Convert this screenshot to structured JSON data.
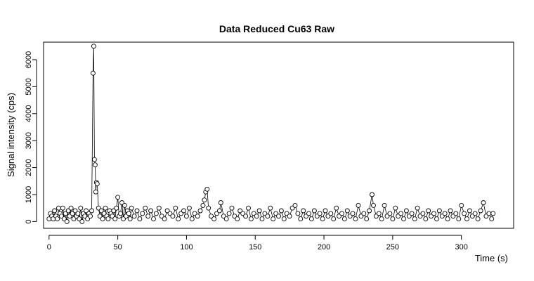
{
  "chart_data": {
    "type": "scatter",
    "title": "Data Reduced Cu63 Raw",
    "xlabel": "Time (s)",
    "ylabel": "Signal intensity (cps)",
    "xlim": [
      -4,
      338
    ],
    "ylim": [
      -250,
      6650
    ],
    "xticks": [
      0,
      50,
      100,
      150,
      200,
      250,
      300
    ],
    "yticks": [
      0,
      1000,
      2000,
      3000,
      4000,
      5000,
      6000
    ],
    "grid": false,
    "marker": "open-circle",
    "line": "connected",
    "points": [
      [
        0,
        100
      ],
      [
        1,
        300
      ],
      [
        2,
        200
      ],
      [
        3,
        100
      ],
      [
        4,
        400
      ],
      [
        5,
        200
      ],
      [
        6,
        100
      ],
      [
        7,
        500
      ],
      [
        8,
        300
      ],
      [
        9,
        200
      ],
      [
        10,
        500
      ],
      [
        11,
        100
      ],
      [
        12,
        300
      ],
      [
        13,
        0
      ],
      [
        14,
        400
      ],
      [
        15,
        200
      ],
      [
        16,
        500
      ],
      [
        17,
        300
      ],
      [
        18,
        100
      ],
      [
        19,
        400
      ],
      [
        20,
        200
      ],
      [
        21,
        300
      ],
      [
        22,
        100
      ],
      [
        23,
        500
      ],
      [
        24,
        0
      ],
      [
        25,
        300
      ],
      [
        26,
        200
      ],
      [
        27,
        400
      ],
      [
        28,
        100
      ],
      [
        29,
        300
      ],
      [
        30,
        200
      ],
      [
        31,
        400
      ],
      [
        32,
        5500
      ],
      [
        32.5,
        6500
      ],
      [
        33,
        2300
      ],
      [
        33.5,
        2100
      ],
      [
        34,
        1100
      ],
      [
        34.5,
        1450
      ],
      [
        35,
        1400
      ],
      [
        36,
        500
      ],
      [
        37,
        200
      ],
      [
        38,
        400
      ],
      [
        39,
        100
      ],
      [
        40,
        300
      ],
      [
        41,
        500
      ],
      [
        42,
        200
      ],
      [
        43,
        100
      ],
      [
        44,
        400
      ],
      [
        45,
        300
      ],
      [
        46,
        200
      ],
      [
        47,
        400
      ],
      [
        48,
        100
      ],
      [
        49,
        500
      ],
      [
        50,
        900
      ],
      [
        51,
        200
      ],
      [
        52,
        300
      ],
      [
        53,
        700
      ],
      [
        54,
        100
      ],
      [
        55,
        600
      ],
      [
        56,
        200
      ],
      [
        57,
        400
      ],
      [
        58,
        300
      ],
      [
        59,
        100
      ],
      [
        60,
        500
      ],
      [
        62,
        200
      ],
      [
        64,
        400
      ],
      [
        66,
        100
      ],
      [
        68,
        300
      ],
      [
        70,
        500
      ],
      [
        72,
        200
      ],
      [
        74,
        400
      ],
      [
        76,
        100
      ],
      [
        78,
        300
      ],
      [
        80,
        500
      ],
      [
        82,
        200
      ],
      [
        84,
        100
      ],
      [
        86,
        400
      ],
      [
        88,
        300
      ],
      [
        90,
        200
      ],
      [
        92,
        500
      ],
      [
        94,
        100
      ],
      [
        96,
        300
      ],
      [
        98,
        400
      ],
      [
        100,
        200
      ],
      [
        102,
        500
      ],
      [
        104,
        100
      ],
      [
        106,
        300
      ],
      [
        108,
        200
      ],
      [
        110,
        400
      ],
      [
        112,
        600
      ],
      [
        113,
        800
      ],
      [
        114,
        1100
      ],
      [
        115,
        1200
      ],
      [
        116,
        500
      ],
      [
        118,
        200
      ],
      [
        120,
        100
      ],
      [
        122,
        300
      ],
      [
        124,
        400
      ],
      [
        125,
        700
      ],
      [
        127,
        200
      ],
      [
        129,
        100
      ],
      [
        131,
        300
      ],
      [
        133,
        500
      ],
      [
        135,
        200
      ],
      [
        137,
        100
      ],
      [
        139,
        400
      ],
      [
        141,
        300
      ],
      [
        143,
        200
      ],
      [
        145,
        500
      ],
      [
        147,
        100
      ],
      [
        149,
        300
      ],
      [
        151,
        200
      ],
      [
        153,
        400
      ],
      [
        155,
        100
      ],
      [
        157,
        300
      ],
      [
        159,
        200
      ],
      [
        161,
        500
      ],
      [
        163,
        100
      ],
      [
        165,
        300
      ],
      [
        167,
        200
      ],
      [
        169,
        400
      ],
      [
        171,
        100
      ],
      [
        173,
        300
      ],
      [
        175,
        200
      ],
      [
        177,
        500
      ],
      [
        179,
        600
      ],
      [
        181,
        300
      ],
      [
        183,
        100
      ],
      [
        185,
        400
      ],
      [
        187,
        200
      ],
      [
        189,
        300
      ],
      [
        191,
        100
      ],
      [
        193,
        400
      ],
      [
        195,
        200
      ],
      [
        197,
        300
      ],
      [
        199,
        100
      ],
      [
        201,
        400
      ],
      [
        203,
        200
      ],
      [
        205,
        300
      ],
      [
        207,
        100
      ],
      [
        209,
        500
      ],
      [
        211,
        200
      ],
      [
        213,
        300
      ],
      [
        215,
        100
      ],
      [
        217,
        400
      ],
      [
        219,
        200
      ],
      [
        221,
        300
      ],
      [
        223,
        100
      ],
      [
        225,
        600
      ],
      [
        227,
        200
      ],
      [
        229,
        300
      ],
      [
        231,
        100
      ],
      [
        233,
        400
      ],
      [
        235,
        1000
      ],
      [
        236,
        600
      ],
      [
        238,
        200
      ],
      [
        240,
        300
      ],
      [
        242,
        100
      ],
      [
        244,
        600
      ],
      [
        246,
        200
      ],
      [
        248,
        300
      ],
      [
        250,
        100
      ],
      [
        252,
        500
      ],
      [
        254,
        200
      ],
      [
        256,
        300
      ],
      [
        258,
        100
      ],
      [
        260,
        400
      ],
      [
        262,
        200
      ],
      [
        264,
        300
      ],
      [
        266,
        100
      ],
      [
        268,
        500
      ],
      [
        270,
        200
      ],
      [
        272,
        300
      ],
      [
        274,
        100
      ],
      [
        276,
        400
      ],
      [
        278,
        200
      ],
      [
        280,
        300
      ],
      [
        282,
        100
      ],
      [
        284,
        400
      ],
      [
        286,
        200
      ],
      [
        288,
        300
      ],
      [
        290,
        100
      ],
      [
        292,
        400
      ],
      [
        294,
        200
      ],
      [
        296,
        300
      ],
      [
        298,
        100
      ],
      [
        300,
        600
      ],
      [
        302,
        300
      ],
      [
        304,
        100
      ],
      [
        306,
        400
      ],
      [
        308,
        200
      ],
      [
        310,
        300
      ],
      [
        312,
        100
      ],
      [
        314,
        400
      ],
      [
        316,
        700
      ],
      [
        318,
        200
      ],
      [
        320,
        300
      ],
      [
        322,
        100
      ],
      [
        323,
        300
      ]
    ]
  }
}
